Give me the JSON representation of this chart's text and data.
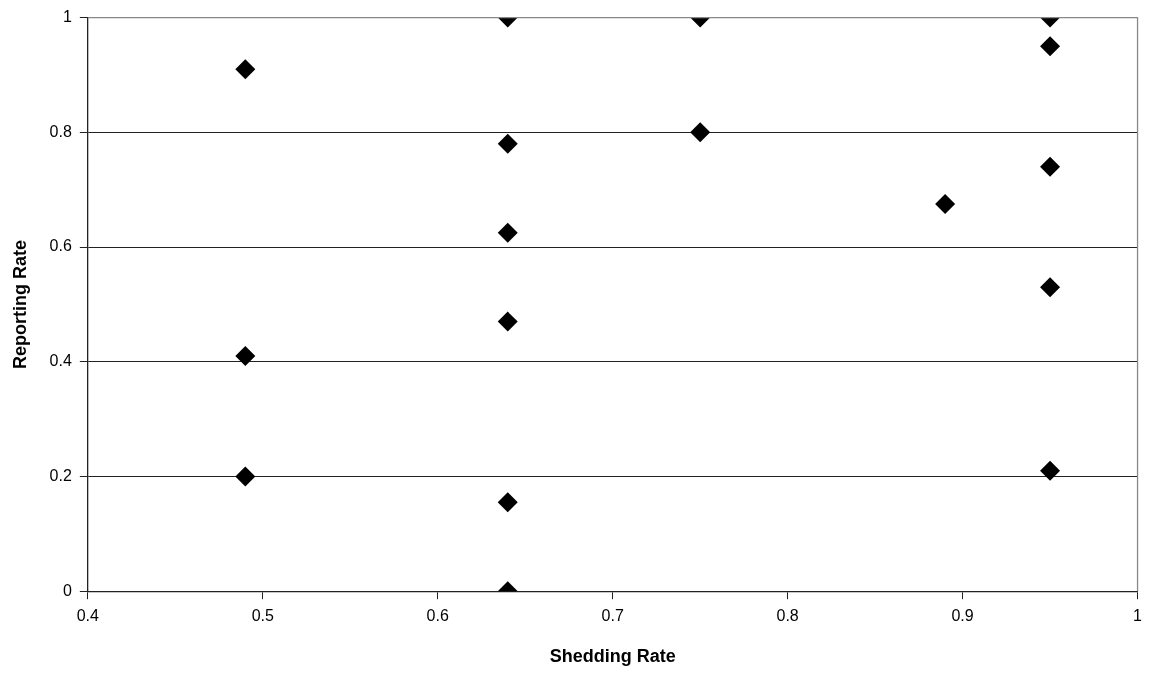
{
  "chart_data": {
    "type": "scatter",
    "xlabel": "Shedding Rate",
    "ylabel": "Reporting Rate",
    "x": [
      0.49,
      0.49,
      0.49,
      0.64,
      0.64,
      0.64,
      0.64,
      0.64,
      0.64,
      0.75,
      0.75,
      0.89,
      0.95,
      0.95,
      0.95,
      0.95,
      0.95
    ],
    "series": [
      {
        "color": "#000000",
        "values": [
          0.91,
          0.41,
          0.2,
          1,
          0.78,
          0.625,
          0.47,
          0.155,
          0,
          1,
          0.8,
          0.675,
          1,
          0.95,
          0.74,
          0.53,
          0.21
        ]
      }
    ],
    "xlim": [
      0.4,
      1
    ],
    "xticks": [
      0.4,
      0.5,
      0.6,
      0.7,
      0.8,
      0.9,
      1
    ],
    "ylim": [
      0,
      1
    ],
    "yticks": [
      0,
      0.2,
      0.4,
      0.6,
      0.8,
      1
    ],
    "grid": "y",
    "legend": false,
    "marker": "diamond"
  }
}
